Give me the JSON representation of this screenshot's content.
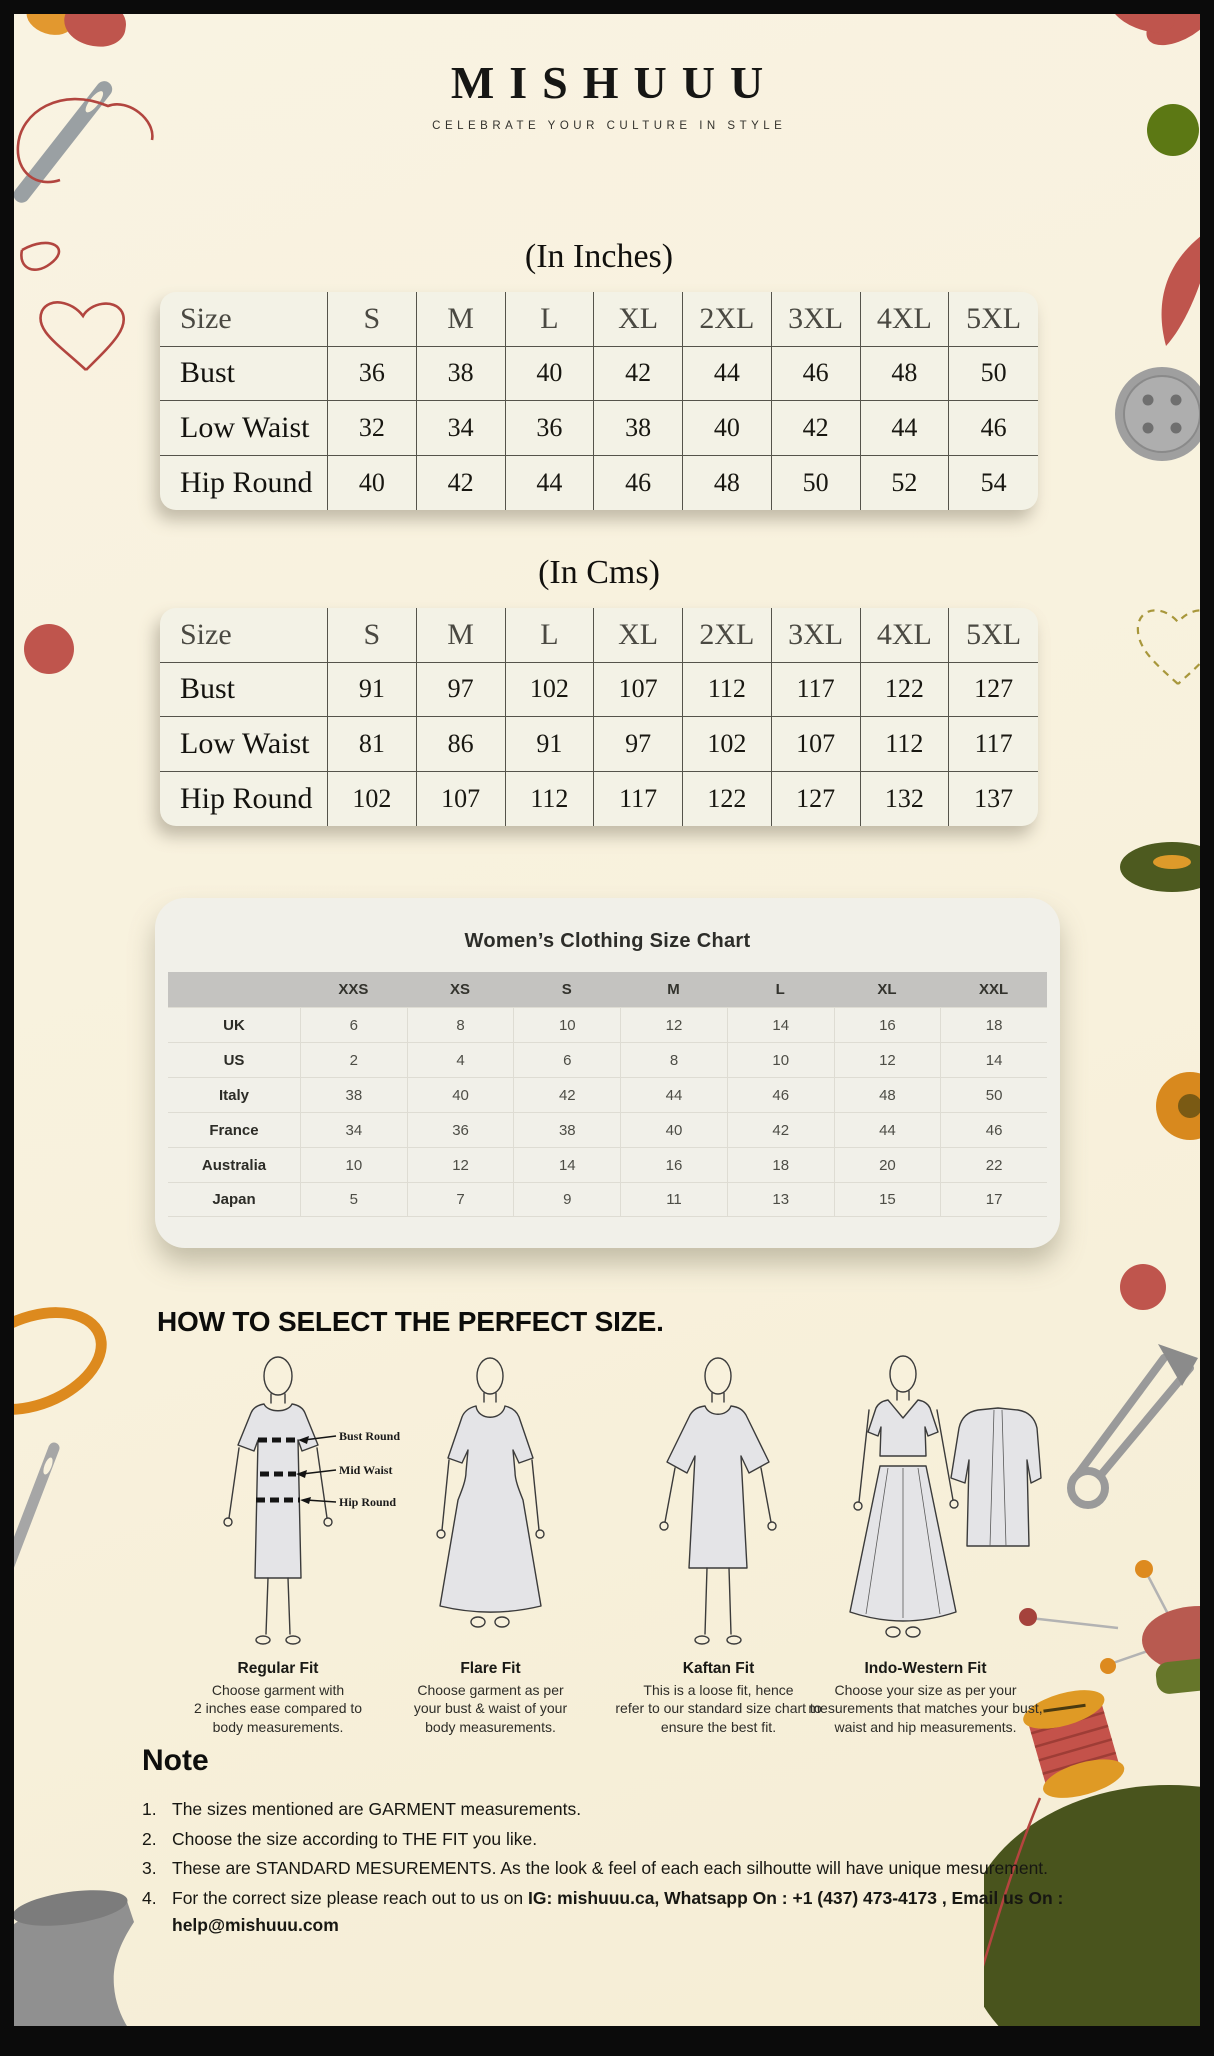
{
  "brand": {
    "name": "MISHUUU",
    "tagline": "CELEBRATE YOUR CULTURE IN STYLE"
  },
  "inches_table": {
    "title": "(In Inches)",
    "header": [
      "Size",
      "S",
      "M",
      "L",
      "XL",
      "2XL",
      "3XL",
      "4XL",
      "5XL"
    ],
    "rows": [
      {
        "label": "Bust",
        "values": [
          36,
          38,
          40,
          42,
          44,
          46,
          48,
          50
        ]
      },
      {
        "label": "Low Waist",
        "values": [
          32,
          34,
          36,
          38,
          40,
          42,
          44,
          46
        ]
      },
      {
        "label": "Hip Round",
        "values": [
          40,
          42,
          44,
          46,
          48,
          50,
          52,
          54
        ]
      }
    ]
  },
  "cms_table": {
    "title": "(In Cms)",
    "header": [
      "Size",
      "S",
      "M",
      "L",
      "XL",
      "2XL",
      "3XL",
      "4XL",
      "5XL"
    ],
    "rows": [
      {
        "label": "Bust",
        "values": [
          91,
          97,
          102,
          107,
          112,
          117,
          122,
          127
        ]
      },
      {
        "label": "Low Waist",
        "values": [
          81,
          86,
          91,
          97,
          102,
          107,
          112,
          117
        ]
      },
      {
        "label": "Hip Round",
        "values": [
          102,
          107,
          112,
          117,
          122,
          127,
          132,
          137
        ]
      }
    ]
  },
  "women_chart": {
    "title": "Women’s Clothing Size Chart",
    "header": [
      "",
      "XXS",
      "XS",
      "S",
      "M",
      "L",
      "XL",
      "XXL"
    ],
    "rows": [
      {
        "label": "UK",
        "values": [
          6,
          8,
          10,
          12,
          14,
          16,
          18
        ]
      },
      {
        "label": "US",
        "values": [
          2,
          4,
          6,
          8,
          10,
          12,
          14
        ]
      },
      {
        "label": "Italy",
        "values": [
          38,
          40,
          42,
          44,
          46,
          48,
          50
        ]
      },
      {
        "label": "France",
        "values": [
          34,
          36,
          38,
          40,
          42,
          44,
          46
        ]
      },
      {
        "label": "Australia",
        "values": [
          10,
          12,
          14,
          16,
          18,
          20,
          22
        ]
      },
      {
        "label": "Japan",
        "values": [
          5,
          7,
          9,
          11,
          13,
          15,
          17
        ]
      }
    ]
  },
  "fit_section": {
    "heading": "HOW TO SELECT THE PERFECT SIZE.",
    "measure_labels": [
      "Bust Round",
      "Mid Waist",
      "Hip Round"
    ],
    "fits": [
      {
        "name": "Regular Fit",
        "description": "Choose garment with\n2 inches ease compared to\nbody measurements."
      },
      {
        "name": "Flare Fit",
        "description": "Choose garment as per\nyour bust & waist of your\nbody measurements."
      },
      {
        "name": "Kaftan Fit",
        "description": "This is a loose fit, hence\nrefer to our standard size chart to\nensure the best fit."
      },
      {
        "name": "Indo-Western Fit",
        "description": "Choose your size as per your\nmesurements that matches your bust,\nwaist and hip measurements."
      }
    ]
  },
  "note": {
    "heading": "Note",
    "items": [
      {
        "num": "1.",
        "text": "The sizes mentioned are GARMENT measurements.",
        "bold": ""
      },
      {
        "num": "2.",
        "text": "Choose the size according to THE FIT you like.",
        "bold": ""
      },
      {
        "num": "3.",
        "text": "These are STANDARD MESUREMENTS. As the look & feel of each each silhoutte will have unique mesurement.",
        "bold": ""
      },
      {
        "num": "4.",
        "text": "For the correct size please reach out to us on ",
        "bold": "IG: mishuuu.ca, Whatsapp On : +1 (437) 473-4173 , Email us On : help@mishuuu.com"
      }
    ]
  },
  "colors": {
    "background": "#f8f1dc",
    "frame": "#0b0b0b",
    "table_bg": "#f3f2e6",
    "card_bg": "#f1f0e9",
    "header_bar": "#c4c3c0",
    "accent_red": "#bf554d",
    "accent_olive": "#5c7814",
    "accent_orange": "#dd8a1e"
  }
}
